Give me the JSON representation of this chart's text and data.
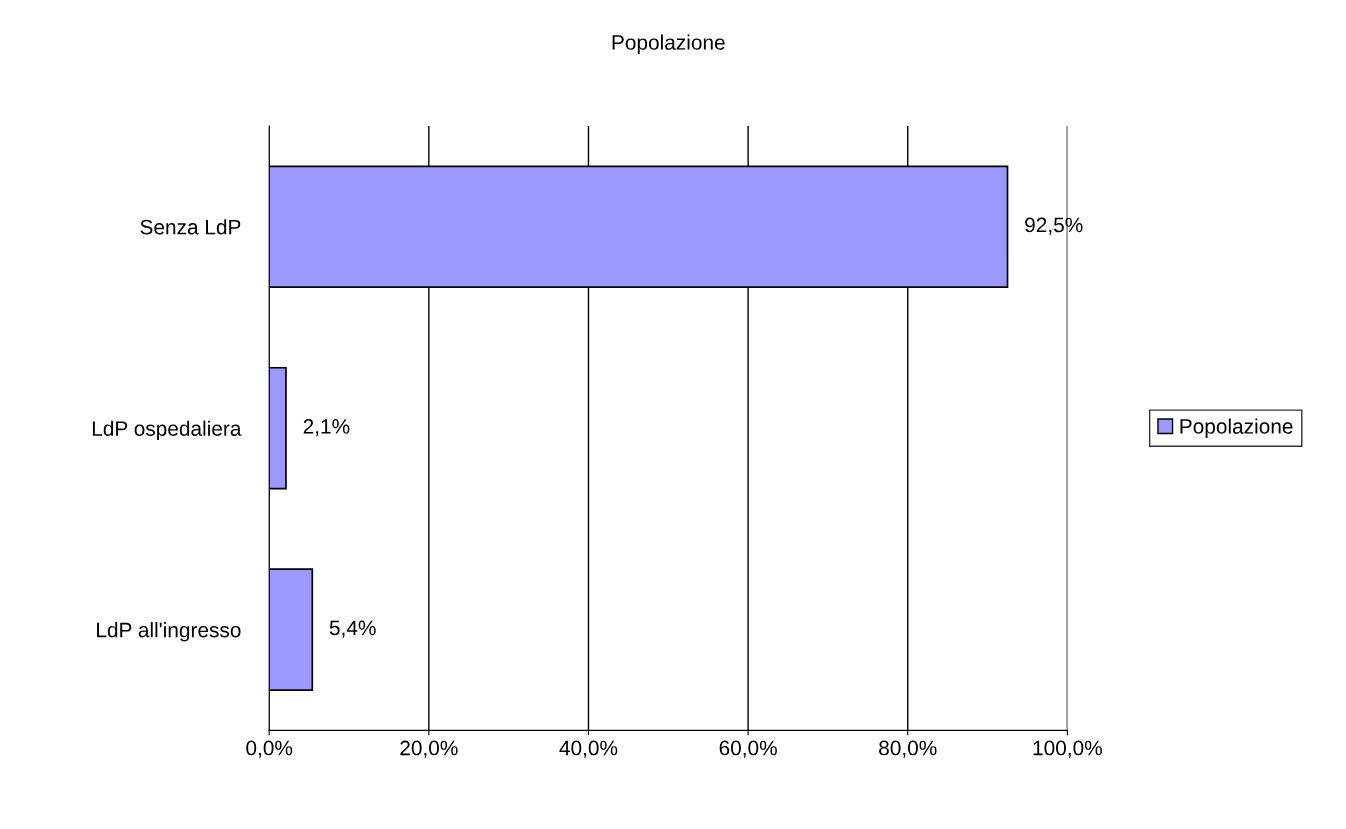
{
  "chart_data": {
    "type": "bar",
    "orientation": "horizontal",
    "title": "Popolazione",
    "categories": [
      "Senza LdP",
      "LdP ospedaliera",
      "LdP all'ingresso"
    ],
    "series": [
      {
        "name": "Popolazione",
        "color": "#9999ff",
        "values": [
          92.5,
          2.1,
          5.4
        ],
        "value_labels": [
          "92,5%",
          "2,1%",
          "5,4%"
        ]
      }
    ],
    "xlim": [
      0,
      100
    ],
    "xticks": [
      {
        "value": 0,
        "label": "0,0%"
      },
      {
        "value": 20,
        "label": "20,0%"
      },
      {
        "value": 40,
        "label": "40,0%"
      },
      {
        "value": 60,
        "label": "60,0%"
      },
      {
        "value": 80,
        "label": "80,0%"
      },
      {
        "value": 100,
        "label": "100,0%"
      }
    ],
    "grid": "x",
    "legend": "right"
  }
}
